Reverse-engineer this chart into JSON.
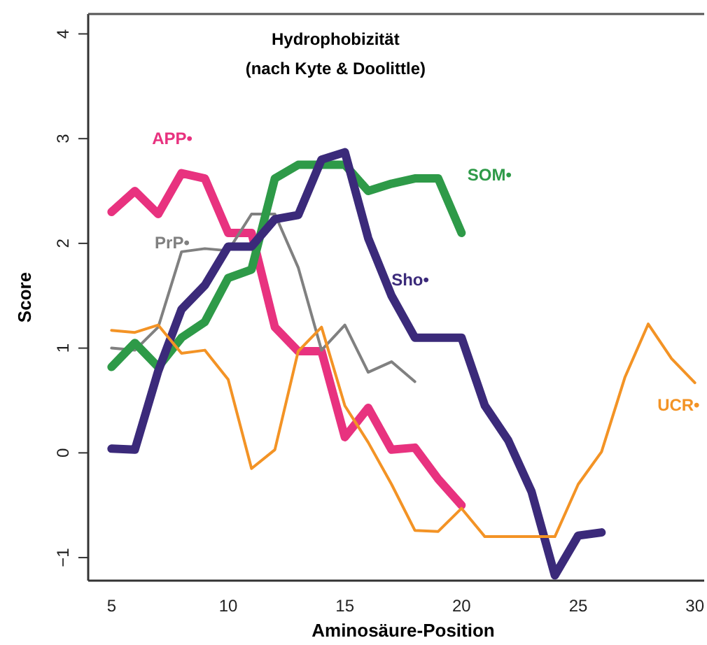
{
  "chart_data": {
    "type": "line",
    "title": "Hydrophobizität",
    "subtitle": "(nach Kyte & Doolittle)",
    "xlabel": "Aminosäure-Position",
    "ylabel": "Score",
    "xlim": [
      4,
      30.4
    ],
    "ylim": [
      -1.22,
      4.19
    ],
    "xticks": [
      5,
      10,
      15,
      20,
      25,
      30
    ],
    "yticks": [
      -1,
      0,
      1,
      2,
      3,
      4
    ],
    "marker": "none",
    "line_style": "solid",
    "series": [
      {
        "name": "APP•",
        "color": "#e8327f",
        "x": [
          5,
          6,
          7,
          8,
          9,
          10,
          11,
          12,
          13,
          14,
          15,
          16,
          17,
          18,
          19,
          20
        ],
        "values": [
          2.3,
          2.5,
          2.28,
          2.67,
          2.62,
          2.1,
          2.1,
          1.2,
          0.97,
          0.97,
          0.15,
          0.43,
          0.03,
          0.05,
          -0.25,
          -0.5
        ]
      },
      {
        "name": "PrP•",
        "color": "#808080",
        "x": [
          5,
          6,
          7,
          8,
          9,
          10,
          11,
          12,
          13,
          14,
          15,
          16,
          17,
          18
        ],
        "values": [
          1.0,
          0.98,
          1.2,
          1.92,
          1.95,
          1.93,
          2.28,
          2.28,
          1.77,
          0.98,
          1.22,
          0.77,
          0.87,
          0.68
        ]
      },
      {
        "name": "SOM•",
        "color": "#2e9a48",
        "x": [
          5,
          6,
          7,
          8,
          9,
          10,
          11,
          12,
          13,
          14,
          15,
          16,
          17,
          18,
          19,
          20
        ],
        "values": [
          0.82,
          1.05,
          0.82,
          1.1,
          1.25,
          1.67,
          1.75,
          2.62,
          2.75,
          2.75,
          2.75,
          2.5,
          2.57,
          2.62,
          2.62,
          2.1
        ]
      },
      {
        "name": "Sho•",
        "color": "#3b2a7a",
        "x": [
          5,
          6,
          7,
          8,
          9,
          10,
          11,
          12,
          13,
          14,
          15,
          16,
          17,
          18,
          19,
          20,
          21,
          22,
          23,
          24,
          25,
          26
        ],
        "values": [
          0.04,
          0.03,
          0.78,
          1.37,
          1.6,
          1.97,
          1.97,
          2.23,
          2.27,
          2.8,
          2.87,
          2.05,
          1.5,
          1.1,
          1.1,
          1.1,
          0.45,
          0.12,
          -0.37,
          -1.17,
          -0.79,
          -0.76
        ]
      },
      {
        "name": "UCR•",
        "color": "#f39325",
        "x": [
          5,
          6,
          7,
          8,
          9,
          10,
          11,
          12,
          13,
          14,
          15,
          16,
          17,
          18,
          19,
          20,
          21,
          22,
          23,
          24,
          25,
          26,
          27,
          28,
          29,
          30
        ],
        "values": [
          1.17,
          1.15,
          1.22,
          0.95,
          0.98,
          0.7,
          -0.15,
          0.03,
          0.97,
          1.2,
          0.45,
          0.1,
          -0.3,
          -0.74,
          -0.75,
          -0.53,
          -0.8,
          -0.8,
          -0.8,
          -0.8,
          -0.3,
          0.01,
          0.72,
          1.23,
          0.9,
          0.67
        ]
      }
    ]
  }
}
